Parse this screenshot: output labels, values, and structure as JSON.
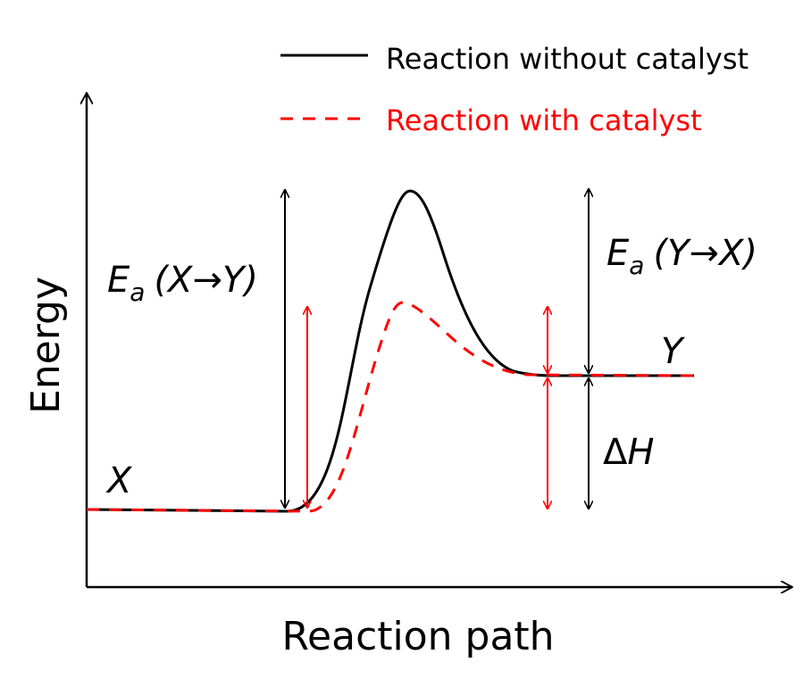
{
  "legend": {
    "uncatalyzed_label": "Reaction without catalyst",
    "catalyzed_label": "Reaction with catalyst"
  },
  "axes": {
    "x_label": "Reaction path",
    "y_label": "Energy"
  },
  "states": {
    "reactant": "X",
    "product": "Y"
  },
  "annotations": {
    "ea_forward": {
      "symbol": "E",
      "subscript": "a",
      "expression": "(X→Y)"
    },
    "ea_reverse": {
      "symbol": "E",
      "subscript": "a",
      "expression": "(Y→X)"
    },
    "enthalpy": {
      "delta": "Δ",
      "symbol": "H"
    }
  },
  "colors": {
    "uncatalyzed": "#000000",
    "catalyzed": "#ff0000",
    "axes": "#000000"
  }
}
